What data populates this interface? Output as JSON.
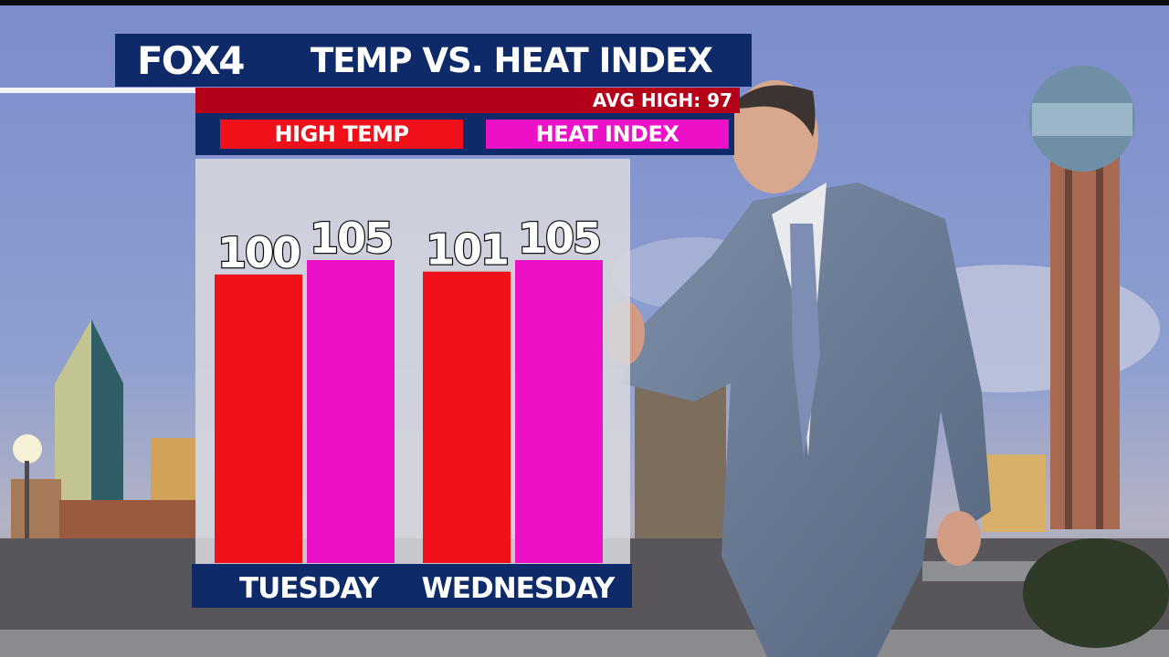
{
  "broadcast": {
    "logo_text": "FOX4",
    "title": "TEMP VS. HEAT INDEX",
    "avg_high": "AVG HIGH: 97"
  },
  "colors": {
    "header_navy": "#0f2a69",
    "avg_red": "#b5001a",
    "high_temp": "#f0101a",
    "heat_index": "#ec10c7"
  },
  "chart_data": {
    "type": "bar",
    "categories": [
      "TUESDAY",
      "WEDNESDAY"
    ],
    "series": [
      {
        "name": "HIGH TEMP",
        "values": [
          100,
          101
        ],
        "color": "#f0101a"
      },
      {
        "name": "HEAT INDEX",
        "values": [
          105,
          105
        ],
        "color": "#ec10c7"
      }
    ],
    "legend": "top",
    "grid": false
  }
}
